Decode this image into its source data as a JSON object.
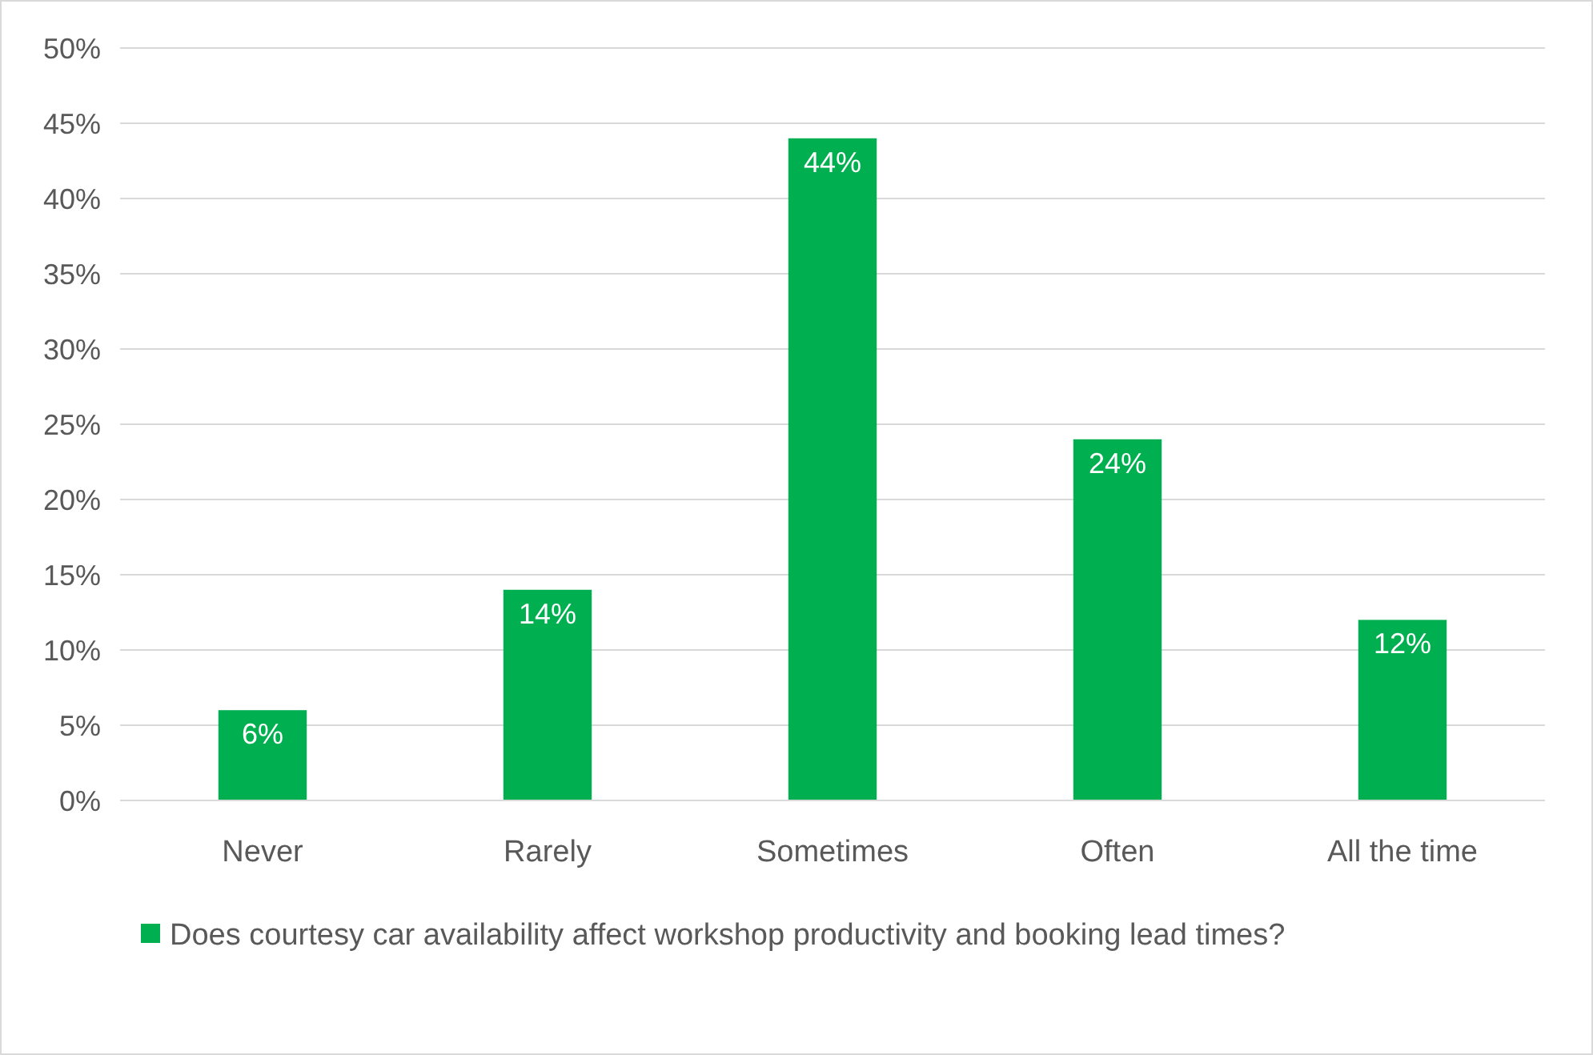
{
  "chart_data": {
    "type": "bar",
    "categories": [
      "Never",
      "Rarely",
      "Sometimes",
      "Often",
      "All the time"
    ],
    "series": [
      {
        "name": "Does courtesy car availability affect workshop productivity and booking lead times?",
        "color": "#00b050",
        "values": [
          6,
          14,
          44,
          24,
          12
        ],
        "value_labels": [
          "6%",
          "14%",
          "44%",
          "24%",
          "12%"
        ]
      }
    ],
    "ylim": [
      0,
      50
    ],
    "yticks": [
      {
        "value": 0,
        "label": "0%"
      },
      {
        "value": 5,
        "label": "5%"
      },
      {
        "value": 10,
        "label": "10%"
      },
      {
        "value": 15,
        "label": "15%"
      },
      {
        "value": 20,
        "label": "20%"
      },
      {
        "value": 25,
        "label": "25%"
      },
      {
        "value": 30,
        "label": "30%"
      },
      {
        "value": 35,
        "label": "35%"
      },
      {
        "value": 40,
        "label": "40%"
      },
      {
        "value": 45,
        "label": "45%"
      },
      {
        "value": 50,
        "label": "50%"
      }
    ],
    "grid": "y",
    "legend": "bottom"
  }
}
